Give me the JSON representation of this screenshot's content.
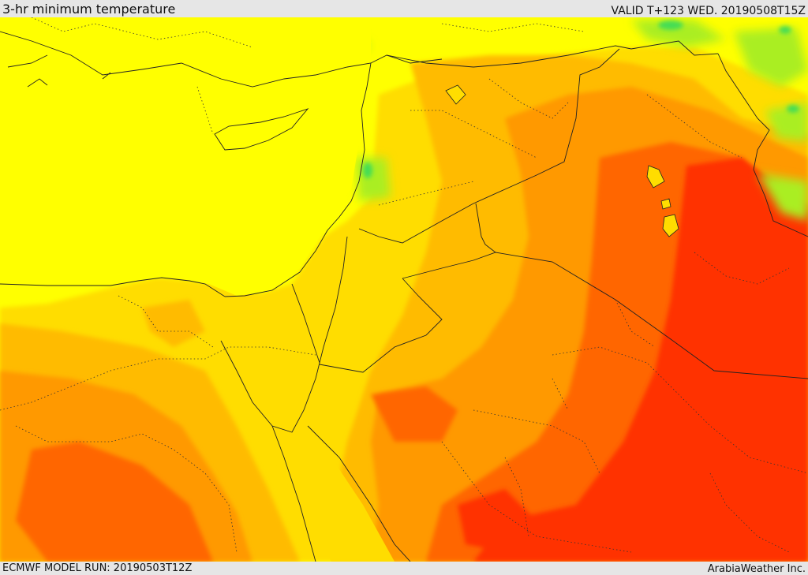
{
  "header": {
    "title": "3-hr minimum temperature",
    "valid": "VALID T+123 WED. 20190508T15Z"
  },
  "footer": {
    "model_run": "ECMWF MODEL RUN: 20190503T12Z",
    "credit": "ArabiaWeather Inc."
  },
  "map": {
    "colors": {
      "green": "#44dd55",
      "lime": "#aaee22",
      "yellow": "#ffff00",
      "gold": "#ffdd00",
      "amber": "#ffbb00",
      "orange": "#ff9900",
      "dark_orange": "#ff6600",
      "red": "#ff3300",
      "border": "#222222"
    }
  }
}
